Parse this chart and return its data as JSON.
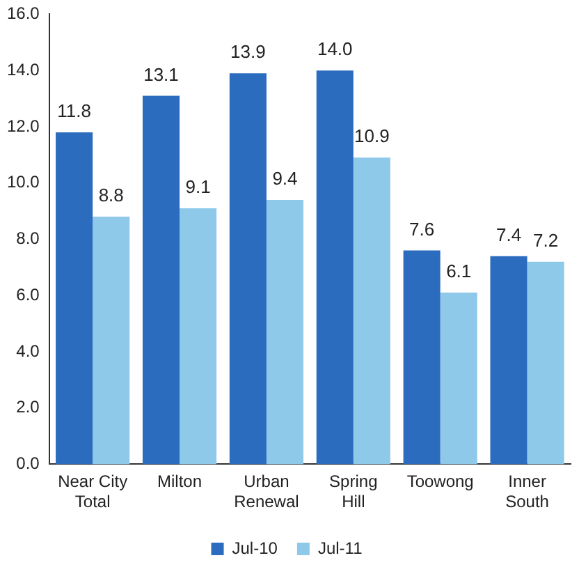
{
  "chart_data": {
    "type": "bar",
    "categories": [
      "Near City Total",
      "Milton",
      "Urban Renewal",
      "Spring Hill",
      "Toowong",
      "Inner South"
    ],
    "series": [
      {
        "name": "Jul-10",
        "color": "#2b6cbf",
        "values": [
          11.8,
          13.1,
          13.9,
          14.0,
          7.6,
          7.4
        ],
        "value_labels": [
          "11.8",
          "13.1",
          "13.9",
          "14.0",
          "7.6",
          "7.4"
        ]
      },
      {
        "name": "Jul-11",
        "color": "#8fc9e9",
        "values": [
          8.8,
          9.1,
          9.4,
          10.9,
          6.1,
          7.2
        ],
        "value_labels": [
          "8.8",
          "9.1",
          "9.4",
          "10.9",
          "6.1",
          "7.2"
        ]
      }
    ],
    "ylim": [
      0,
      16
    ],
    "yticks": [
      {
        "value": 0,
        "label": "0.0"
      },
      {
        "value": 2,
        "label": "2.0"
      },
      {
        "value": 4,
        "label": "4.0"
      },
      {
        "value": 6,
        "label": "6.0"
      },
      {
        "value": 8,
        "label": "8.0"
      },
      {
        "value": 10,
        "label": "10.0"
      },
      {
        "value": 12,
        "label": "12.0"
      },
      {
        "value": 14,
        "label": "14.0"
      },
      {
        "value": 16,
        "label": "16.0"
      }
    ],
    "grid": false,
    "legend": "bottom"
  }
}
